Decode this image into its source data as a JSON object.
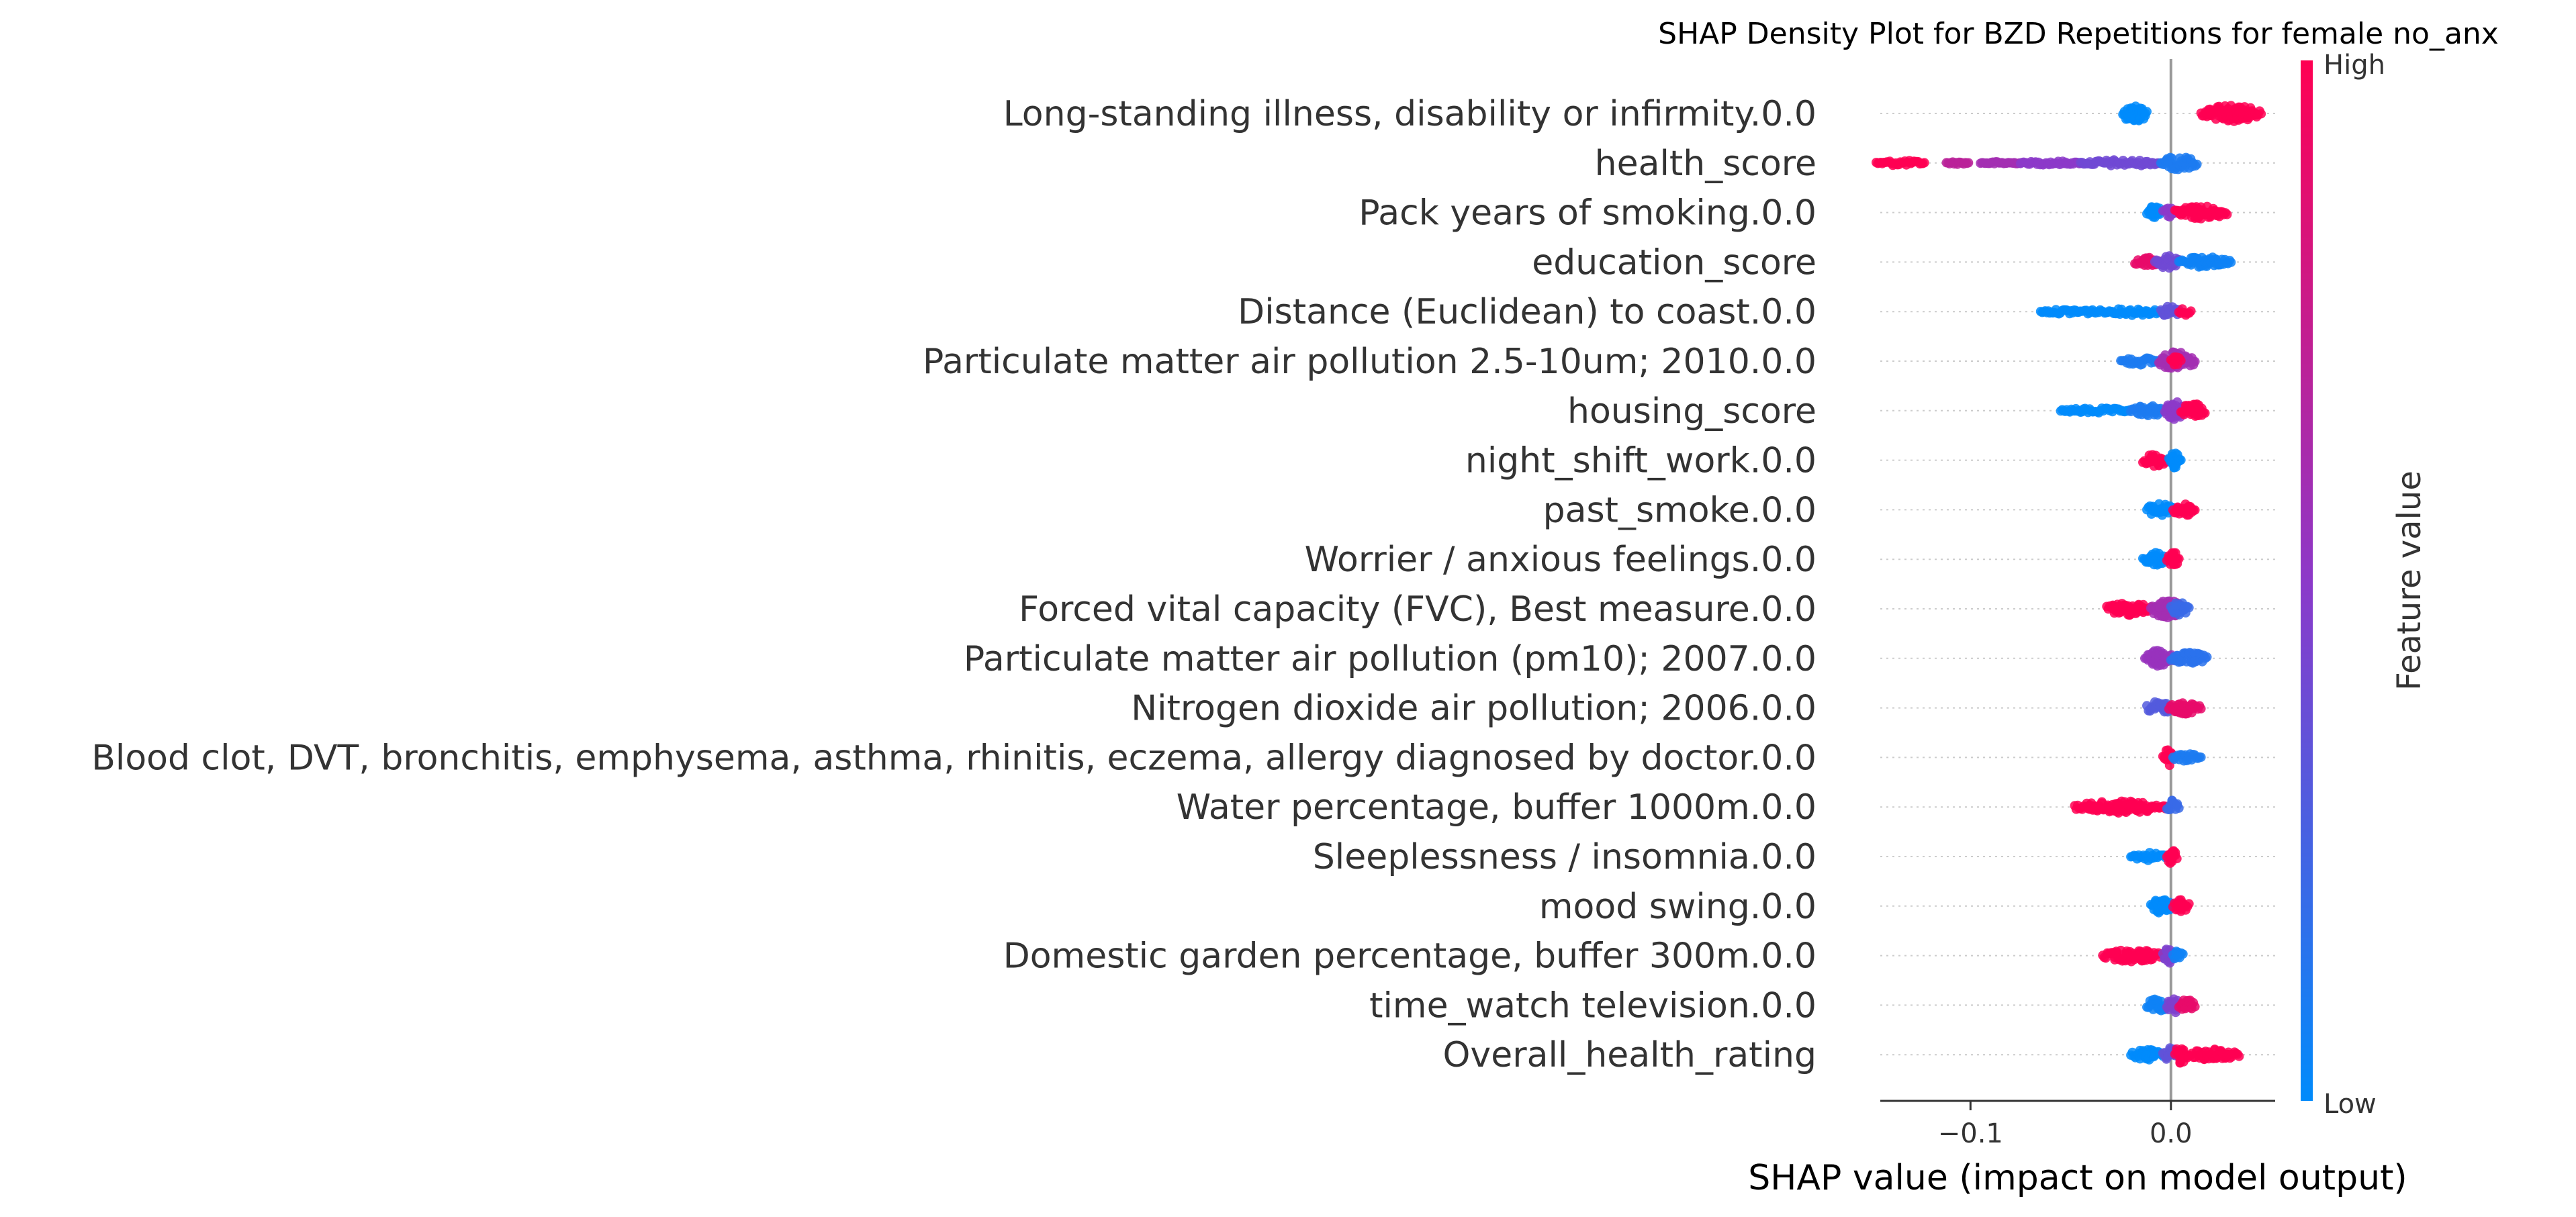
{
  "chart_data": {
    "type": "scatter",
    "subtype": "shap-summary-beeswarm",
    "title": "SHAP Density Plot for BZD Repetitions for female no_anx",
    "xlabel": "SHAP value (impact on model output)",
    "xlim": [
      -0.145,
      0.052
    ],
    "xticks": [
      -0.1,
      0.0
    ],
    "xtick_labels": [
      "−0.1",
      "0.0"
    ],
    "zero_line": 0.0,
    "colorbar": {
      "label": "Feature value",
      "high_label": "High",
      "low_label": "Low",
      "low_color": "#008bfb",
      "mid_color": "#8c39c9",
      "high_color": "#ff0052"
    },
    "features": [
      {
        "name": "Long-standing illness, disability or infirmity.0.0",
        "groups": [
          [
            -0.024,
            -0.012,
            0.0,
            14
          ],
          [
            0.015,
            0.045,
            1.0,
            12
          ]
        ]
      },
      {
        "name": "health_score",
        "groups": [
          [
            -0.147,
            -0.123,
            1.0,
            4
          ],
          [
            -0.112,
            -0.101,
            0.7,
            2
          ],
          [
            -0.095,
            -0.075,
            0.6,
            2
          ],
          [
            -0.075,
            -0.045,
            0.5,
            3
          ],
          [
            -0.045,
            -0.005,
            0.4,
            5
          ],
          [
            -0.005,
            0.013,
            0.1,
            10
          ]
        ]
      },
      {
        "name": "Pack years of smoking.0.0",
        "groups": [
          [
            -0.012,
            -0.004,
            0.0,
            10
          ],
          [
            -0.004,
            0.002,
            0.5,
            8
          ],
          [
            0.002,
            0.028,
            1.0,
            10
          ]
        ]
      },
      {
        "name": "education_score",
        "groups": [
          [
            -0.018,
            -0.006,
            0.9,
            7
          ],
          [
            -0.008,
            0.004,
            0.4,
            10
          ],
          [
            0.004,
            0.03,
            0.05,
            8
          ]
        ]
      },
      {
        "name": "Distance (Euclidean) to coast.0.0",
        "groups": [
          [
            -0.065,
            -0.03,
            0.0,
            4
          ],
          [
            -0.03,
            -0.005,
            0.0,
            6
          ],
          [
            -0.005,
            0.004,
            0.35,
            9
          ],
          [
            0.004,
            0.01,
            1.0,
            6
          ]
        ]
      },
      {
        "name": "Particulate matter air pollution 2.5-10um; 2010.0.0",
        "groups": [
          [
            -0.025,
            -0.006,
            0.1,
            6
          ],
          [
            -0.006,
            0.012,
            0.6,
            14
          ],
          [
            0.0,
            0.005,
            1.0,
            7
          ]
        ]
      },
      {
        "name": "housing_score",
        "groups": [
          [
            -0.055,
            -0.02,
            0.0,
            4
          ],
          [
            -0.02,
            -0.002,
            0.1,
            8
          ],
          [
            -0.003,
            0.007,
            0.5,
            14
          ],
          [
            0.005,
            0.017,
            1.0,
            11
          ]
        ]
      },
      {
        "name": "night_shift_work.0.0",
        "groups": [
          [
            -0.014,
            -0.002,
            1.0,
            10
          ],
          [
            -0.001,
            0.005,
            0.0,
            12
          ]
        ]
      },
      {
        "name": "past_smoke.0.0",
        "groups": [
          [
            -0.012,
            0.001,
            0.0,
            10
          ],
          [
            0.001,
            0.012,
            1.0,
            10
          ]
        ]
      },
      {
        "name": "Worrier / anxious feelings.0.0",
        "groups": [
          [
            -0.014,
            -0.002,
            0.0,
            10
          ],
          [
            -0.002,
            0.004,
            1.0,
            12
          ]
        ]
      },
      {
        "name": "Forced vital capacity (FVC), Best measure.0.0",
        "groups": [
          [
            -0.032,
            -0.01,
            1.0,
            10
          ],
          [
            -0.01,
            0.006,
            0.6,
            14
          ],
          [
            0.0,
            0.009,
            0.2,
            10
          ]
        ]
      },
      {
        "name": "Particulate matter air pollution (pm10); 2007.0.0",
        "groups": [
          [
            -0.013,
            0.001,
            0.55,
            12
          ],
          [
            0.0,
            0.018,
            0.15,
            9
          ]
        ]
      },
      {
        "name": "Nitrogen dioxide air pollution; 2006.0.0",
        "groups": [
          [
            -0.012,
            0.0,
            0.3,
            10
          ],
          [
            -0.001,
            0.015,
            0.9,
            9
          ]
        ]
      },
      {
        "name": "Blood clot, DVT, bronchitis, emphysema, asthma, rhinitis, eczema, allergy diagnosed by doctor.0.0",
        "groups": [
          [
            -0.004,
            0.001,
            1.0,
            14
          ],
          [
            0.001,
            0.015,
            0.1,
            6
          ]
        ]
      },
      {
        "name": "Water percentage, buffer 1000m.0.0",
        "groups": [
          [
            -0.048,
            -0.002,
            1.0,
            9
          ],
          [
            -0.002,
            0.004,
            0.2,
            10
          ]
        ]
      },
      {
        "name": "Sleeplessness / insomnia.0.0",
        "groups": [
          [
            -0.02,
            -0.002,
            0.0,
            6
          ],
          [
            -0.002,
            0.003,
            1.0,
            12
          ]
        ]
      },
      {
        "name": "mood swing.0.0",
        "groups": [
          [
            -0.01,
            0.001,
            0.0,
            11
          ],
          [
            0.001,
            0.009,
            1.0,
            10
          ]
        ]
      },
      {
        "name": "Domestic garden percentage, buffer 300m.0.0",
        "groups": [
          [
            -0.034,
            -0.004,
            1.0,
            9
          ],
          [
            -0.004,
            0.002,
            0.45,
            12
          ],
          [
            0.001,
            0.006,
            0.05,
            7
          ]
        ]
      },
      {
        "name": "time_watch television.0.0",
        "groups": [
          [
            -0.012,
            -0.001,
            0.05,
            10
          ],
          [
            -0.002,
            0.005,
            0.45,
            12
          ],
          [
            0.004,
            0.012,
            0.9,
            9
          ]
        ]
      },
      {
        "name": "Overall_health_rating",
        "groups": [
          [
            -0.02,
            -0.004,
            0.0,
            8
          ],
          [
            -0.004,
            0.003,
            0.35,
            12
          ],
          [
            0.002,
            0.008,
            1.0,
            14
          ],
          [
            0.009,
            0.034,
            1.0,
            9
          ]
        ]
      }
    ]
  }
}
